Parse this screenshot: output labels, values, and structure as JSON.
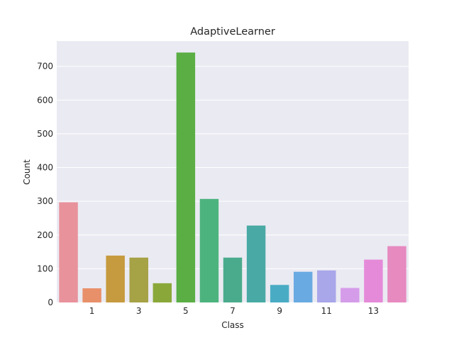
{
  "chart_data": {
    "type": "bar",
    "title": "AdaptiveLearner",
    "xlabel": "Class",
    "ylabel": "Count",
    "categories": [
      "0",
      "1",
      "2",
      "3",
      "4",
      "5",
      "6",
      "7",
      "8",
      "9",
      "10",
      "11",
      "12",
      "13",
      "14"
    ],
    "shown_x_ticks": [
      "1",
      "3",
      "5",
      "7",
      "9",
      "11",
      "13"
    ],
    "values": [
      297,
      42,
      139,
      133,
      57,
      741,
      307,
      133,
      228,
      52,
      91,
      95,
      43,
      127,
      167
    ],
    "colors": [
      "#e8929c",
      "#e8906a",
      "#c69a3e",
      "#a6a246",
      "#8aa83a",
      "#5aae44",
      "#4db37e",
      "#4aab8c",
      "#49a9a4",
      "#4aacc4",
      "#6aaae2",
      "#a9a6ea",
      "#d59ce9",
      "#e58ad9",
      "#e68ac0"
    ],
    "ylim": [
      0,
      775
    ],
    "y_ticks": [
      0,
      100,
      200,
      300,
      400,
      500,
      600,
      700
    ],
    "grid": true,
    "background": "#eaeaf2",
    "gridline_color": "#ffffff"
  }
}
